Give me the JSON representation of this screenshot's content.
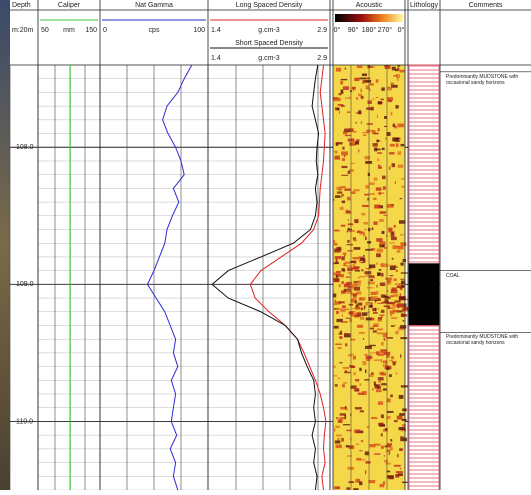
{
  "chart_data": {
    "type": "well-log",
    "depth": {
      "label": "Depth",
      "scale": "m:20m",
      "ylim": [
        107.4,
        110.5
      ],
      "yticks": [
        {
          "value": 108,
          "label": "108.0"
        },
        {
          "value": 109,
          "label": "109.0"
        },
        {
          "value": 110,
          "label": "110.0"
        }
      ]
    },
    "depths": [
      107.4,
      107.5,
      107.6,
      107.7,
      107.8,
      107.9,
      108.0,
      108.1,
      108.2,
      108.3,
      108.4,
      108.5,
      108.6,
      108.7,
      108.8,
      108.9,
      109.0,
      109.1,
      109.2,
      109.3,
      109.4,
      109.5,
      109.6,
      109.7,
      109.8,
      109.9,
      110.0,
      110.1,
      110.2,
      110.3,
      110.4,
      110.5
    ],
    "tracks": [
      {
        "type": "line",
        "series": [
          {
            "name": "Caliper",
            "color": "#3cc43c",
            "unit": "mm",
            "xlim": [
              50,
              150
            ],
            "values": [
              102,
              102,
              102,
              102,
              102,
              102,
              102,
              102,
              102,
              102,
              102,
              102,
              102,
              102,
              102,
              102,
              102,
              102,
              102,
              102,
              102,
              102,
              102,
              102,
              102,
              102,
              102,
              102,
              102,
              102,
              102,
              102
            ]
          }
        ]
      },
      {
        "type": "line",
        "series": [
          {
            "name": "Nat Gamma",
            "color": "#2b2bd0",
            "unit": "cps",
            "xlim": [
              0,
              100
            ],
            "values": [
              85,
              78,
              72,
              62,
              58,
              63,
              70,
              75,
              78,
              68,
              73,
              67,
              62,
              60,
              55,
              50,
              44,
              52,
              60,
              65,
              70,
              68,
              72,
              66,
              70,
              68,
              66,
              71,
              65,
              70,
              68,
              72
            ]
          }
        ]
      },
      {
        "type": "line",
        "series": [
          {
            "name": "Long Spaced Density",
            "color": "#e02020",
            "unit": "g.cm-3",
            "xlim": [
              1.4,
              2.9
            ],
            "values": [
              2.82,
              2.8,
              2.78,
              2.8,
              2.82,
              2.84,
              2.83,
              2.82,
              2.8,
              2.78,
              2.77,
              2.76,
              2.7,
              2.55,
              2.3,
              2.05,
              1.92,
              1.98,
              2.15,
              2.35,
              2.5,
              2.58,
              2.65,
              2.72,
              2.78,
              2.82,
              2.85,
              2.83,
              2.82,
              2.84,
              2.8,
              2.82
            ]
          },
          {
            "name": "Short Spaced Density",
            "color": "#111111",
            "unit": "g.cm-3",
            "xlim": [
              1.4,
              2.9
            ],
            "values": [
              2.75,
              2.72,
              2.7,
              2.68,
              2.72,
              2.76,
              2.74,
              2.73,
              2.75,
              2.72,
              2.74,
              2.72,
              2.66,
              2.45,
              2.05,
              1.65,
              1.45,
              1.65,
              2.05,
              2.35,
              2.5,
              2.55,
              2.62,
              2.7,
              2.72,
              2.7,
              2.72,
              2.68,
              2.72,
              2.7,
              2.74,
              2.72
            ]
          }
        ]
      }
    ],
    "acoustic": {
      "name": "Acoustic",
      "azimuths": [
        "0°",
        "90°",
        "180°",
        "270°",
        "0°"
      ]
    },
    "lithology": {
      "name": "Lithology",
      "intervals": [
        {
          "top": 107.4,
          "base": 108.85,
          "color": "#e05060"
        },
        {
          "top": 108.85,
          "base": 109.3,
          "color": "#000000"
        },
        {
          "top": 109.3,
          "base": 110.5,
          "color": "#e05060"
        }
      ]
    },
    "comments": {
      "name": "Comments",
      "items": [
        {
          "depth": 107.45,
          "text": "Predominantly MUDSTONE with occasional sandy horizons"
        },
        {
          "depth": 108.9,
          "text": "COAL"
        },
        {
          "depth": 109.35,
          "text": "Predominantly MUDSTONE with occasional sandy horizons"
        }
      ]
    }
  }
}
